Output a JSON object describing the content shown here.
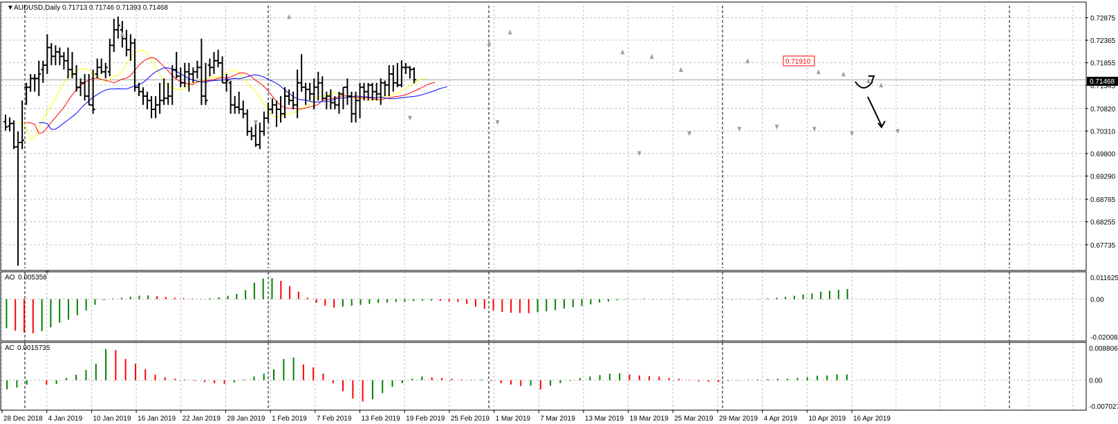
{
  "header": {
    "symbol": "AUDUSD,Daily",
    "ohlc": "0.71713 0.71746 0.71393 0.71468"
  },
  "colors": {
    "up_bar": "#000000",
    "fractal": "#a0a0a0",
    "ma_fast": "#ffff00",
    "ma_mid": "#ff0000",
    "ma_slow": "#0000ff",
    "osc_up": "#008000",
    "osc_down": "#ff0000",
    "grid": "#c0c0c0"
  },
  "chart_data": [
    {
      "type": "ohlc",
      "title": "AUDUSD,Daily",
      "y_ticks": [
        "0.72875",
        "0.72365",
        "0.71855",
        "0.71345",
        "0.70820",
        "0.70310",
        "0.69800",
        "0.69290",
        "0.68765",
        "0.68255",
        "0.67735"
      ],
      "current_price_label": "0.71468",
      "annotation_price_label": "0.71910",
      "ylim": [
        0.672,
        0.7315
      ],
      "x_labels": [
        "28 Dec 2018",
        "4 Jan 2019",
        "10 Jan 2019",
        "16 Jan 2019",
        "22 Jan 2019",
        "28 Jan 2019",
        "1 Feb 2019",
        "7 Feb 2019",
        "13 Feb 2019",
        "19 Feb 2019",
        "25 Feb 2019",
        "1 Mar 2019",
        "7 Mar 2019",
        "13 Mar 2019",
        "19 Mar 2019",
        "25 Mar 2019",
        "29 Mar 2019",
        "4 Apr 2019",
        "10 Apr 2019",
        "16 Apr 2019"
      ],
      "bars": [
        [
          0.7052,
          0.7068,
          0.7032,
          0.704
        ],
        [
          0.7042,
          0.7062,
          0.703,
          0.7048
        ],
        [
          0.7048,
          0.7055,
          0.699,
          0.6995
        ],
        [
          0.6995,
          0.703,
          0.6726,
          0.7005
        ],
        [
          0.7005,
          0.71,
          0.699,
          0.701
        ],
        [
          0.713,
          0.714,
          0.709,
          0.713
        ],
        [
          0.713,
          0.716,
          0.712,
          0.715
        ],
        [
          0.715,
          0.716,
          0.712,
          0.715
        ],
        [
          0.715,
          0.719,
          0.711,
          0.716
        ],
        [
          0.717,
          0.719,
          0.714,
          0.718
        ],
        [
          0.718,
          0.725,
          0.716,
          0.722
        ],
        [
          0.722,
          0.723,
          0.718,
          0.72
        ],
        [
          0.72,
          0.7225,
          0.718,
          0.721
        ],
        [
          0.721,
          0.722,
          0.718,
          0.72
        ],
        [
          0.72,
          0.721,
          0.717,
          0.719
        ],
        [
          0.719,
          0.722,
          0.715,
          0.717
        ],
        [
          0.717,
          0.721,
          0.715,
          0.716
        ],
        [
          0.716,
          0.718,
          0.712,
          0.713
        ],
        [
          0.713,
          0.715,
          0.711,
          0.714
        ],
        [
          0.714,
          0.716,
          0.71,
          0.711
        ],
        [
          0.711,
          0.716,
          0.709,
          0.709
        ],
        [
          0.709,
          0.717,
          0.707,
          0.708
        ],
        [
          0.716,
          0.7195,
          0.715,
          0.7175
        ],
        [
          0.7175,
          0.7195,
          0.716,
          0.7165
        ],
        [
          0.7165,
          0.7185,
          0.715,
          0.7175
        ],
        [
          0.7165,
          0.724,
          0.7155,
          0.7225
        ],
        [
          0.7225,
          0.7285,
          0.721,
          0.726
        ],
        [
          0.726,
          0.729,
          0.724,
          0.727
        ],
        [
          0.726,
          0.728,
          0.722,
          0.724
        ],
        [
          0.724,
          0.726,
          0.72,
          0.7215
        ],
        [
          0.7215,
          0.725,
          0.719,
          0.723
        ],
        [
          0.723,
          0.724,
          0.712,
          0.713
        ],
        [
          0.713,
          0.714,
          0.711,
          0.712
        ],
        [
          0.712,
          0.713,
          0.709,
          0.711
        ],
        [
          0.711,
          0.712,
          0.708,
          0.71
        ],
        [
          0.71,
          0.711,
          0.706,
          0.708
        ],
        [
          0.708,
          0.711,
          0.706,
          0.709
        ],
        [
          0.709,
          0.714,
          0.707,
          0.71
        ],
        [
          0.71,
          0.715,
          0.709,
          0.7105
        ],
        [
          0.7105,
          0.714,
          0.709,
          0.711
        ],
        [
          0.711,
          0.718,
          0.709,
          0.717
        ],
        [
          0.717,
          0.721,
          0.715,
          0.7155
        ],
        [
          0.7155,
          0.7175,
          0.713,
          0.714
        ],
        [
          0.714,
          0.7185,
          0.713,
          0.7165
        ],
        [
          0.7165,
          0.7185,
          0.712,
          0.716
        ],
        [
          0.716,
          0.7175,
          0.714,
          0.7165
        ],
        [
          0.7165,
          0.719,
          0.715,
          0.7175
        ],
        [
          0.7175,
          0.724,
          0.709,
          0.711
        ],
        [
          0.711,
          0.7185,
          0.709,
          0.71
        ],
        [
          0.718,
          0.7195,
          0.7155,
          0.7175
        ],
        [
          0.7175,
          0.721,
          0.716,
          0.719
        ],
        [
          0.719,
          0.7215,
          0.7175,
          0.7185
        ],
        [
          0.7185,
          0.72,
          0.714,
          0.714
        ],
        [
          0.714,
          0.716,
          0.712,
          0.7145
        ],
        [
          0.714,
          0.7145,
          0.707,
          0.709
        ],
        [
          0.709,
          0.711,
          0.707,
          0.7085
        ],
        [
          0.7085,
          0.712,
          0.707,
          0.708
        ],
        [
          0.708,
          0.71,
          0.706,
          0.707
        ],
        [
          0.707,
          0.708,
          0.702,
          0.703
        ],
        [
          0.703,
          0.704,
          0.701,
          0.702
        ],
        [
          0.702,
          0.705,
          0.6995,
          0.7
        ],
        [
          0.7,
          0.705,
          0.699,
          0.703
        ],
        [
          0.703,
          0.7075,
          0.702,
          0.706
        ],
        [
          0.706,
          0.7095,
          0.705,
          0.708
        ],
        [
          0.708,
          0.7105,
          0.707,
          0.709
        ],
        [
          0.709,
          0.71,
          0.704,
          0.708
        ],
        [
          0.708,
          0.711,
          0.705,
          0.707
        ],
        [
          0.707,
          0.713,
          0.706,
          0.711
        ],
        [
          0.711,
          0.7125,
          0.709,
          0.71
        ],
        [
          0.71,
          0.712,
          0.708,
          0.709
        ],
        [
          0.709,
          0.717,
          0.706,
          0.714
        ],
        [
          0.714,
          0.7205,
          0.712,
          0.713
        ],
        [
          0.713,
          0.714,
          0.709,
          0.7125
        ],
        [
          0.7125,
          0.714,
          0.71,
          0.7115
        ],
        [
          0.7115,
          0.715,
          0.708,
          0.713
        ],
        [
          0.713,
          0.7165,
          0.71,
          0.714
        ],
        [
          0.714,
          0.7155,
          0.71,
          0.7105
        ],
        [
          0.7105,
          0.712,
          0.708,
          0.711
        ],
        [
          0.711,
          0.7125,
          0.708,
          0.7095
        ],
        [
          0.7095,
          0.711,
          0.708,
          0.709
        ],
        [
          0.709,
          0.712,
          0.707,
          0.7115
        ],
        [
          0.7115,
          0.713,
          0.708,
          0.713
        ],
        [
          0.713,
          0.715,
          0.709,
          0.711
        ],
        [
          0.711,
          0.712,
          0.705,
          0.707
        ],
        [
          0.707,
          0.712,
          0.705,
          0.71
        ],
        [
          0.71,
          0.714,
          0.706,
          0.713
        ],
        [
          0.713,
          0.714,
          0.71,
          0.712
        ],
        [
          0.712,
          0.714,
          0.71,
          0.7135
        ],
        [
          0.7135,
          0.714,
          0.71,
          0.712
        ],
        [
          0.712,
          0.714,
          0.71,
          0.7115
        ],
        [
          0.7115,
          0.715,
          0.709,
          0.714
        ],
        [
          0.714,
          0.7145,
          0.711,
          0.7135
        ],
        [
          0.7135,
          0.718,
          0.711,
          0.716
        ],
        [
          0.716,
          0.718,
          0.712,
          0.714
        ],
        [
          0.714,
          0.7185,
          0.713,
          0.7135
        ],
        [
          0.7135,
          0.7191,
          0.713,
          0.7175
        ],
        [
          0.7175,
          0.7185,
          0.716,
          0.7175
        ],
        [
          0.7175,
          0.7178,
          0.715,
          0.717
        ],
        [
          0.7171,
          0.7175,
          0.7139,
          0.7147
        ]
      ],
      "fractals_up": [
        [
          28,
          0.724
        ],
        [
          68,
          0.728
        ],
        [
          116,
          0.722
        ],
        [
          121,
          0.7245
        ],
        [
          148,
          0.72
        ],
        [
          155,
          0.719
        ],
        [
          162,
          0.716
        ],
        [
          178,
          0.718
        ],
        [
          195,
          0.7155
        ],
        [
          201,
          0.715
        ],
        [
          207,
          0.7135
        ],
        [
          210,
          0.7125
        ]
      ],
      "fractals_down": [
        [
          10,
          0.672
        ],
        [
          60,
          0.706
        ],
        [
          97,
          0.707
        ],
        [
          118,
          0.706
        ],
        [
          152,
          0.699
        ],
        [
          164,
          0.7035
        ],
        [
          176,
          0.7045
        ],
        [
          185,
          0.705
        ],
        [
          194,
          0.7045
        ],
        [
          203,
          0.7035
        ],
        [
          214,
          0.704
        ]
      ]
    },
    {
      "type": "bar",
      "title": "AO",
      "value_label": "0.005358",
      "y_ticks": [
        "0.011625",
        "0.00",
        "-0.020084"
      ],
      "ylim": [
        -0.020084,
        0.011625
      ],
      "values": [
        -0.0155,
        -0.0168,
        -0.0178,
        -0.0182,
        -0.017,
        -0.015,
        -0.0125,
        -0.011,
        -0.0085,
        -0.006,
        -0.003,
        -0.0005,
        0.0003,
        0.0008,
        0.0014,
        0.0018,
        0.002,
        0.0016,
        0.0012,
        0.0008,
        0.0005,
        0.0003,
        0.0002,
        0.0005,
        0.001,
        0.0018,
        0.0028,
        0.0048,
        0.0088,
        0.011,
        0.0112,
        0.0098,
        0.007,
        0.004,
        0.0008,
        -0.002,
        -0.0035,
        -0.0045,
        -0.004,
        -0.0035,
        -0.003,
        -0.0025,
        -0.002,
        -0.0018,
        -0.0015,
        -0.0013,
        -0.001,
        -0.0008,
        -0.0008,
        -0.001,
        -0.0012,
        -0.0015,
        -0.0025,
        -0.004,
        -0.0052,
        -0.006,
        -0.0068,
        -0.0072,
        -0.0074,
        -0.0075,
        -0.007,
        -0.0065,
        -0.0058,
        -0.005,
        -0.0042,
        -0.0036,
        -0.0028,
        -0.0018,
        -0.0012,
        -0.0006,
        -0.0002,
        0.0001,
        0.0003,
        0.0002,
        0.0001,
        -0.0001,
        -0.0002,
        -0.0002,
        -0.0001,
        0.0,
        -0.0002,
        0.0001,
        -0.0002,
        -0.0001,
        0.0001,
        0.0002,
        0.0004,
        0.0008,
        0.0012,
        0.0018,
        0.0025,
        0.003,
        0.004,
        0.0045,
        0.005,
        0.0054
      ],
      "up_color": "#008000",
      "down_color": "#ff0000"
    },
    {
      "type": "bar",
      "title": "AC",
      "value_label": "0.0015735",
      "y_ticks": [
        "0.0088061",
        "0.00",
        "-0.0070277"
      ],
      "ylim": [
        -0.0070277,
        0.0088061
      ],
      "values": [
        -0.0025,
        -0.002,
        -0.0012,
        0.0,
        -0.0012,
        -0.001,
        0.0006,
        0.0015,
        0.0028,
        0.0045,
        0.0085,
        0.0082,
        0.0058,
        0.0045,
        0.003,
        0.0015,
        0.0008,
        0.0004,
        0.0002,
        -0.0002,
        -0.0005,
        -0.0008,
        -0.001,
        -0.0006,
        0.0002,
        0.001,
        0.0018,
        0.003,
        0.0058,
        0.0062,
        0.0043,
        0.0035,
        0.0018,
        -0.0008,
        -0.003,
        -0.005,
        -0.0058,
        -0.0052,
        -0.0035,
        -0.0018,
        -0.0008,
        0.0004,
        0.001,
        0.0008,
        0.0006,
        0.0004,
        0.0002,
        0.0001,
        0.0002,
        -0.0002,
        -0.0008,
        -0.0012,
        -0.0016,
        -0.0015,
        -0.0025,
        -0.0015,
        -0.0008,
        -0.0002,
        0.0006,
        0.001,
        0.0014,
        0.0018,
        0.0019,
        0.0016,
        0.0013,
        0.0011,
        0.001,
        0.0006,
        0.0004,
        0.0001,
        -0.0003,
        -0.0004,
        -0.0005,
        -0.0002,
        -0.0001,
        0.0001,
        0.0002,
        0.0003,
        0.0004,
        0.0004,
        0.0006,
        0.0008,
        0.0012,
        0.0013,
        0.0016,
        0.0016
      ],
      "up_color": "#008000",
      "down_color": "#ff0000"
    }
  ]
}
